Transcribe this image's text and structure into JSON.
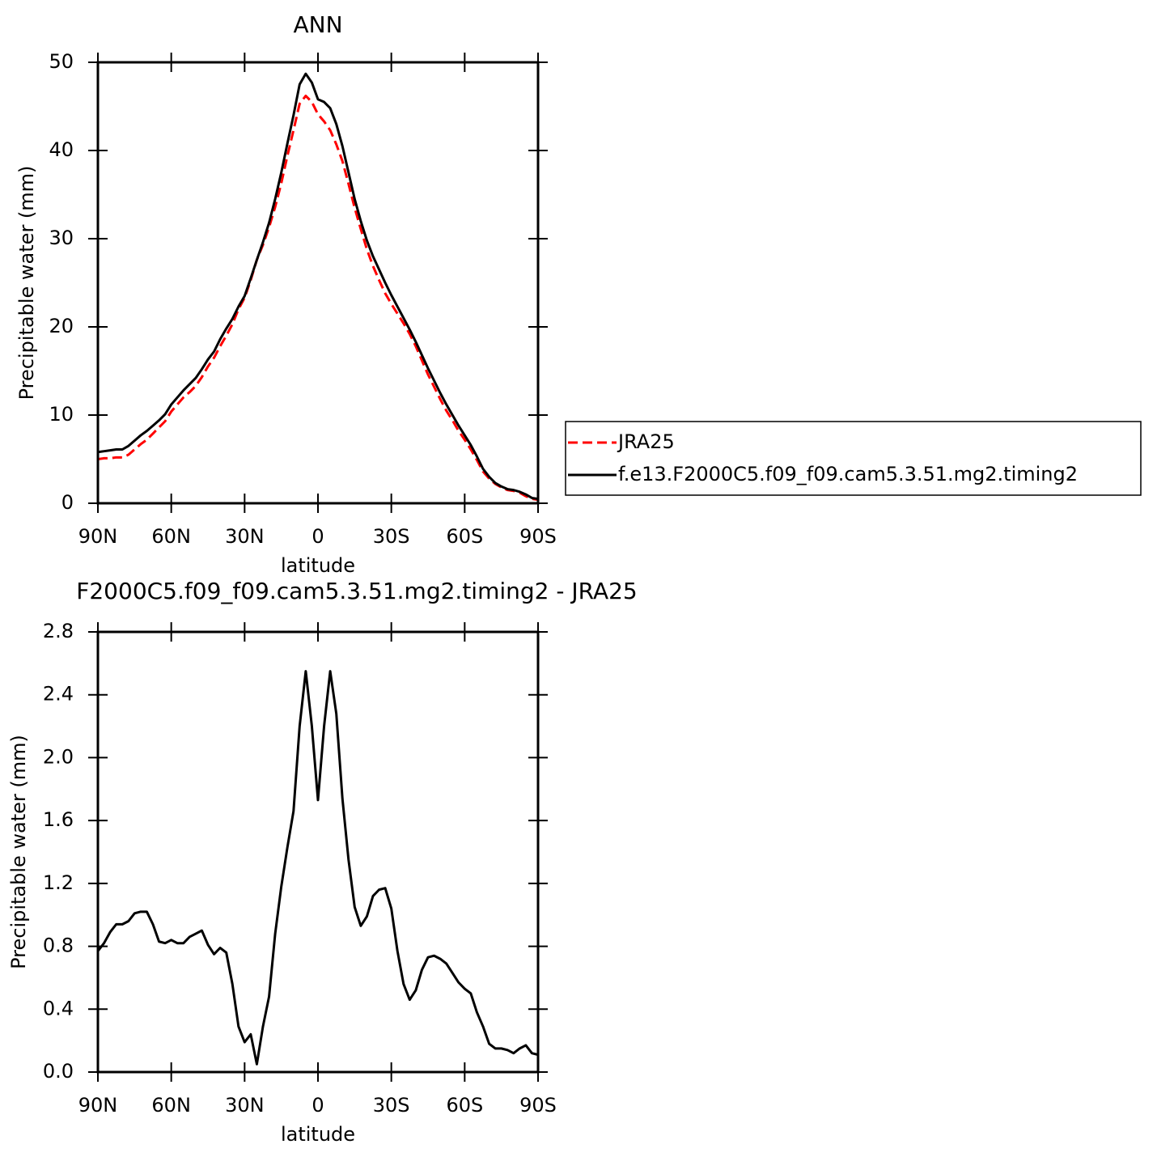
{
  "chart_data": [
    {
      "type": "line",
      "title": "ANN",
      "xlabel": "latitude",
      "ylabel": "Precipitable water (mm)",
      "xlim": [
        90,
        -90
      ],
      "xticks": [
        {
          "value": 90,
          "label": "90N"
        },
        {
          "value": 60,
          "label": "60N"
        },
        {
          "value": 30,
          "label": "30N"
        },
        0,
        {
          "value": -30,
          "label": "30S"
        },
        {
          "value": -60,
          "label": "60S"
        },
        {
          "value": -90,
          "label": "90S"
        }
      ],
      "ylim": [
        0,
        50
      ],
      "yticks": [
        0,
        10,
        20,
        30,
        40,
        50
      ],
      "grid": false,
      "legend": "outside-right",
      "x": [
        90,
        87.5,
        85,
        82.5,
        80,
        77.5,
        75,
        72.5,
        70,
        67.5,
        65,
        62.5,
        60,
        57.5,
        55,
        52.5,
        50,
        47.5,
        45,
        42.5,
        40,
        37.5,
        35,
        32.5,
        30,
        27.5,
        25,
        22.5,
        20,
        17.5,
        15,
        12.5,
        10,
        7.5,
        5,
        2.5,
        0,
        -2.5,
        -5,
        -7.5,
        -10,
        -12.5,
        -15,
        -17.5,
        -20,
        -22.5,
        -25,
        -27.5,
        -30,
        -32.5,
        -35,
        -37.5,
        -40,
        -42.5,
        -45,
        -47.5,
        -50,
        -52.5,
        -55,
        -57.5,
        -60,
        -62.5,
        -65,
        -67.5,
        -70,
        -72.5,
        -75,
        -77.5,
        -80,
        -82.5,
        -85,
        -87.5,
        -90
      ],
      "series": [
        {
          "name": "JRA25",
          "color": "#ff0000",
          "linestyle": "dashed",
          "values": [
            5.0,
            5.1,
            5.1,
            5.2,
            5.2,
            5.5,
            6.1,
            6.7,
            7.2,
            7.9,
            8.6,
            9.3,
            10.4,
            11.2,
            12.0,
            12.6,
            13.3,
            14.3,
            15.5,
            16.5,
            17.8,
            19.0,
            20.3,
            22.0,
            23.3,
            25.3,
            27.6,
            29.3,
            31.3,
            33.6,
            36.3,
            39.4,
            42.3,
            45.3,
            46.2,
            45.5,
            44.1,
            43.3,
            42.3,
            40.7,
            38.8,
            36.2,
            33.5,
            31.1,
            28.8,
            26.9,
            25.3,
            23.8,
            22.6,
            21.5,
            20.4,
            19.2,
            17.8,
            16.2,
            14.6,
            13.2,
            11.8,
            10.5,
            9.4,
            8.2,
            7.2,
            6.1,
            4.9,
            3.6,
            2.8,
            2.2,
            1.8,
            1.5,
            1.4,
            1.2,
            0.8,
            0.5,
            0.4
          ]
        },
        {
          "name": "f.e13.F2000C5.f09_f09.cam5.3.51.mg2.timing2",
          "color": "#000000",
          "linestyle": "solid",
          "values": [
            5.8,
            5.9,
            6.0,
            6.1,
            6.1,
            6.5,
            7.1,
            7.7,
            8.2,
            8.8,
            9.4,
            10.1,
            11.2,
            12.0,
            12.8,
            13.5,
            14.2,
            15.2,
            16.3,
            17.2,
            18.6,
            19.8,
            20.9,
            22.3,
            23.5,
            25.5,
            27.6,
            29.6,
            31.8,
            34.5,
            37.5,
            40.8,
            44.0,
            47.5,
            48.7,
            47.7,
            45.8,
            45.5,
            44.8,
            43.0,
            40.5,
            37.5,
            34.5,
            32.0,
            29.8,
            28.0,
            26.5,
            25.0,
            23.6,
            22.3,
            21.0,
            19.7,
            18.3,
            16.8,
            15.3,
            13.9,
            12.5,
            11.2,
            10.0,
            8.8,
            7.7,
            6.6,
            5.3,
            3.9,
            3.0,
            2.3,
            1.9,
            1.6,
            1.5,
            1.3,
            1.0,
            0.6,
            0.5
          ]
        }
      ]
    },
    {
      "type": "line",
      "title": "F2000C5.f09_f09.cam5.3.51.mg2.timing2 - JRA25",
      "xlabel": "latitude",
      "ylabel": "Precipitable water (mm)",
      "xlim": [
        90,
        -90
      ],
      "xticks": [
        {
          "value": 90,
          "label": "90N"
        },
        {
          "value": 60,
          "label": "60N"
        },
        {
          "value": 30,
          "label": "30N"
        },
        0,
        {
          "value": -30,
          "label": "30S"
        },
        {
          "value": -60,
          "label": "60S"
        },
        {
          "value": -90,
          "label": "90S"
        }
      ],
      "ylim": [
        0,
        2.8
      ],
      "yticks": [
        {
          "value": 0,
          "label": "0.0"
        },
        0.4,
        0.8,
        1.2,
        1.6,
        {
          "value": 2,
          "label": "2.0"
        },
        2.4,
        2.8
      ],
      "grid": false,
      "x": [
        90,
        87.5,
        85,
        82.5,
        80,
        77.5,
        75,
        72.5,
        70,
        67.5,
        65,
        62.5,
        60,
        57.5,
        55,
        52.5,
        50,
        47.5,
        45,
        42.5,
        40,
        37.5,
        35,
        32.5,
        30,
        27.5,
        25,
        22.5,
        20,
        17.5,
        15,
        12.5,
        10,
        7.5,
        5,
        2.5,
        0,
        -2.5,
        -5,
        -7.5,
        -10,
        -12.5,
        -15,
        -17.5,
        -20,
        -22.5,
        -25,
        -27.5,
        -30,
        -32.5,
        -35,
        -37.5,
        -40,
        -42.5,
        -45,
        -47.5,
        -50,
        -52.5,
        -55,
        -57.5,
        -60,
        -62.5,
        -65,
        -67.5,
        -70,
        -72.5,
        -75,
        -77.5,
        -80,
        -82.5,
        -85,
        -87.5,
        -90
      ],
      "series": [
        {
          "color": "#000000",
          "linestyle": "solid",
          "values": [
            0.77,
            0.82,
            0.89,
            0.94,
            0.94,
            0.96,
            1.01,
            1.02,
            1.02,
            0.94,
            0.83,
            0.82,
            0.84,
            0.82,
            0.82,
            0.86,
            0.88,
            0.9,
            0.81,
            0.75,
            0.79,
            0.76,
            0.56,
            0.29,
            0.19,
            0.24,
            0.05,
            0.29,
            0.48,
            0.88,
            1.18,
            1.43,
            1.66,
            2.2,
            2.55,
            2.2,
            1.73,
            2.2,
            2.55,
            2.28,
            1.74,
            1.35,
            1.05,
            0.93,
            0.99,
            1.12,
            1.16,
            1.17,
            1.04,
            0.77,
            0.56,
            0.46,
            0.52,
            0.65,
            0.73,
            0.74,
            0.72,
            0.69,
            0.63,
            0.57,
            0.53,
            0.5,
            0.38,
            0.29,
            0.18,
            0.15,
            0.15,
            0.14,
            0.12,
            0.15,
            0.17,
            0.12,
            0.11
          ]
        }
      ]
    }
  ]
}
